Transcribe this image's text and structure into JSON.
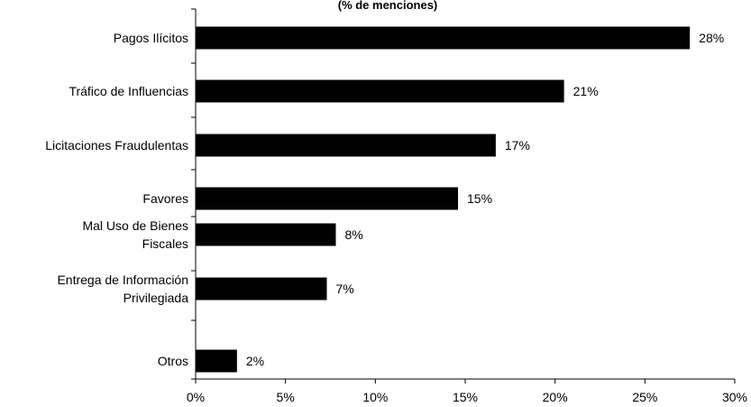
{
  "chart_data": {
    "type": "bar",
    "orientation": "horizontal",
    "subtitle": "(% de menciones)",
    "categories": [
      [
        "Pagos Ilícitos"
      ],
      [
        "Tráfico de Influencias"
      ],
      [
        "Licitaciones Fraudulentas"
      ],
      [
        "Favores"
      ],
      [
        "Mal Uso de Bienes",
        "Fiscales"
      ],
      [
        "Entrega de Información",
        "Privilegiada"
      ],
      [
        "Otros"
      ]
    ],
    "values": [
      27.5,
      20.5,
      16.7,
      14.6,
      7.8,
      7.3,
      2.3
    ],
    "value_labels": [
      "28%",
      "21%",
      "17%",
      "15%",
      "8%",
      "7%",
      "2%"
    ],
    "xlim": [
      0,
      30
    ],
    "xticks": [
      0,
      5,
      10,
      15,
      20,
      25,
      30
    ],
    "xtick_labels": [
      "0%",
      "5%",
      "10%",
      "15%",
      "20%",
      "25%",
      "30%"
    ],
    "bar_color": "#000000",
    "grid": false,
    "legend": "none"
  }
}
